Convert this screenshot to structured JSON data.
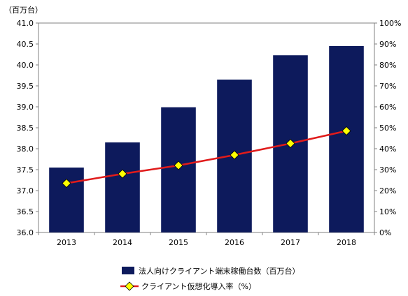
{
  "chart_data": {
    "type": "bar+line",
    "categories": [
      "2013",
      "2014",
      "2015",
      "2016",
      "2017",
      "2018"
    ],
    "unit_label": "（百万台）",
    "y_left": {
      "min": 36.0,
      "max": 41.0,
      "ticks": [
        "36.0",
        "36.5",
        "37.0",
        "37.5",
        "38.0",
        "38.5",
        "39.0",
        "39.5",
        "40.0",
        "40.5",
        "41.0"
      ]
    },
    "y_right": {
      "min": 0,
      "max": 100,
      "ticks": [
        "0%",
        "10%",
        "20%",
        "30%",
        "40%",
        "50%",
        "60%",
        "70%",
        "80%",
        "90%",
        "100%"
      ]
    },
    "series": [
      {
        "name": "法人向けクライアント端末稼働台数（百万台）",
        "kind": "bar",
        "axis": "left",
        "color": "#0d1a5c",
        "values": [
          37.55,
          38.15,
          38.99,
          39.65,
          40.23,
          40.45
        ]
      },
      {
        "name": "クライアント仮想化導入率（%）",
        "kind": "line",
        "axis": "right",
        "color": "#e01b1b",
        "marker_color": "#ffff00",
        "values": [
          23.5,
          28.0,
          32.0,
          37.0,
          42.5,
          48.5
        ]
      }
    ],
    "grid": false,
    "legend_position": "bottom"
  }
}
